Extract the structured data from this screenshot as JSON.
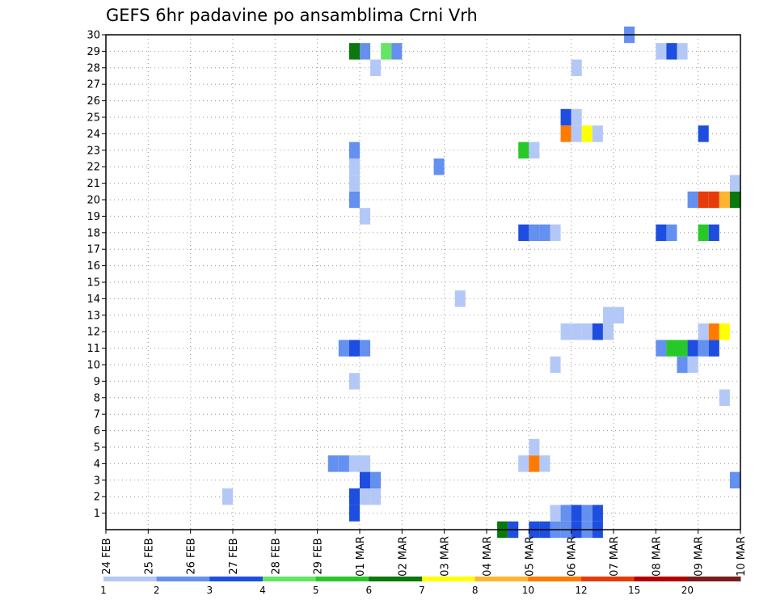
{
  "chart_data": {
    "type": "heatmap",
    "title": "GEFS 6hr padavine po ansamblima Crni Vrh",
    "xlabel": "",
    "ylabel": "",
    "x_tick_labels": [
      "24 FEB",
      "25 FEB",
      "26 FEB",
      "27 FEB",
      "28 FEB",
      "29 FEB",
      "01 MAR",
      "02 MAR",
      "03 MAR",
      "04 MAR",
      "05 MAR",
      "06 MAR",
      "07 MAR",
      "08 MAR",
      "09 MAR",
      "10 MAR"
    ],
    "x_range_days": [
      0,
      15
    ],
    "y_tick_labels": [
      "1",
      "2",
      "3",
      "4",
      "5",
      "6",
      "7",
      "8",
      "9",
      "10",
      "11",
      "12",
      "13",
      "14",
      "15",
      "16",
      "17",
      "18",
      "19",
      "20",
      "21",
      "22",
      "23",
      "24",
      "25",
      "26",
      "27",
      "28",
      "29",
      "30"
    ],
    "y_range": [
      0,
      30
    ],
    "grid": true,
    "colorbar": {
      "labels": [
        "1",
        "2",
        "3",
        "4",
        "5",
        "6",
        "7",
        "8",
        "10",
        "12",
        "15",
        "20"
      ],
      "bounds": [
        1,
        2,
        3,
        4,
        5,
        6,
        7,
        8,
        10,
        12,
        15,
        20
      ],
      "colors": [
        "#b4c8f8",
        "#6490f0",
        "#1e4ee0",
        "#64e664",
        "#28c828",
        "#0a780a",
        "#ffff00",
        "#ffb432",
        "#ff7a00",
        "#e63c0a",
        "#b40000",
        "#781e1e"
      ]
    },
    "cells_note": "each cell: day offset from 24 FEB (6h step = 0.25), member row, precipitation class (1-based)",
    "cells": [
      [
        0,
        2.75,
        2,
        1
      ],
      [
        0,
        5.25,
        4,
        2
      ],
      [
        0,
        5.5,
        4,
        2
      ],
      [
        0,
        5.75,
        4,
        1
      ],
      [
        0,
        5.75,
        1,
        3
      ],
      [
        0,
        5.75,
        2,
        3
      ],
      [
        0,
        6.0,
        3,
        3
      ],
      [
        0,
        6.25,
        3,
        2
      ],
      [
        0,
        6.0,
        2,
        1
      ],
      [
        0,
        6.25,
        2,
        1
      ],
      [
        0,
        6.0,
        4,
        1
      ],
      [
        0,
        5.75,
        9,
        1
      ],
      [
        0,
        5.5,
        11,
        2
      ],
      [
        0,
        5.75,
        11,
        3
      ],
      [
        0,
        6.0,
        11,
        2
      ],
      [
        0,
        5.75,
        20,
        2
      ],
      [
        0,
        6.0,
        19,
        1
      ],
      [
        0,
        5.75,
        21,
        1
      ],
      [
        0,
        5.75,
        22,
        1
      ],
      [
        0,
        5.75,
        23,
        2
      ],
      [
        0,
        6.25,
        28,
        1
      ],
      [
        0,
        5.75,
        29,
        6
      ],
      [
        0,
        6.0,
        29,
        2
      ],
      [
        0,
        6.5,
        29,
        4
      ],
      [
        0,
        6.75,
        29,
        2
      ],
      [
        0,
        7.75,
        22,
        2
      ],
      [
        0,
        8.25,
        14,
        1
      ],
      [
        0,
        9.25,
        0,
        6
      ],
      [
        0,
        9.5,
        0,
        3
      ],
      [
        0,
        10.0,
        0,
        3
      ],
      [
        0,
        10.25,
        0,
        3
      ],
      [
        0,
        10.5,
        0,
        2
      ],
      [
        0,
        10.75,
        0,
        2
      ],
      [
        0,
        11.0,
        0,
        3
      ],
      [
        0,
        11.25,
        0,
        2
      ],
      [
        0,
        11.5,
        0,
        3
      ],
      [
        0,
        10.5,
        1,
        1
      ],
      [
        0,
        10.75,
        1,
        2
      ],
      [
        0,
        11.0,
        1,
        3
      ],
      [
        0,
        11.25,
        1,
        2
      ],
      [
        0,
        11.5,
        1,
        3
      ],
      [
        0,
        9.75,
        4,
        1
      ],
      [
        0,
        10.0,
        4,
        9
      ],
      [
        0,
        10.25,
        4,
        1
      ],
      [
        0,
        10.0,
        5,
        1
      ],
      [
        0,
        9.75,
        18,
        3
      ],
      [
        0,
        10.0,
        18,
        2
      ],
      [
        0,
        10.25,
        18,
        2
      ],
      [
        0,
        10.5,
        18,
        1
      ],
      [
        0,
        9.75,
        23,
        5
      ],
      [
        0,
        10.0,
        23,
        1
      ],
      [
        0,
        10.5,
        10,
        1
      ],
      [
        0,
        10.75,
        12,
        1
      ],
      [
        0,
        11.0,
        12,
        1
      ],
      [
        0,
        11.25,
        12,
        1
      ],
      [
        0,
        11.5,
        12,
        3
      ],
      [
        0,
        11.75,
        12,
        1
      ],
      [
        0,
        11.75,
        13,
        1
      ],
      [
        0,
        12.0,
        13,
        1
      ],
      [
        0,
        10.75,
        24,
        9
      ],
      [
        0,
        11.0,
        24,
        1
      ],
      [
        0,
        11.25,
        24,
        7
      ],
      [
        0,
        11.5,
        24,
        1
      ],
      [
        0,
        10.75,
        25,
        3
      ],
      [
        0,
        11.0,
        25,
        1
      ],
      [
        0,
        11.0,
        28,
        1
      ],
      [
        0,
        12.25,
        30,
        2
      ],
      [
        0,
        13.0,
        29,
        1
      ],
      [
        0,
        13.25,
        29,
        3
      ],
      [
        0,
        13.5,
        29,
        1
      ],
      [
        0,
        13.0,
        18,
        3
      ],
      [
        0,
        13.25,
        18,
        2
      ],
      [
        0,
        14.0,
        18,
        5
      ],
      [
        0,
        14.25,
        18,
        3
      ],
      [
        0,
        13.0,
        11,
        2
      ],
      [
        0,
        13.25,
        11,
        5
      ],
      [
        0,
        13.5,
        11,
        5
      ],
      [
        0,
        13.75,
        11,
        3
      ],
      [
        0,
        14.0,
        11,
        2
      ],
      [
        0,
        14.25,
        11,
        3
      ],
      [
        0,
        13.5,
        10,
        2
      ],
      [
        0,
        13.75,
        10,
        1
      ],
      [
        0,
        14.0,
        12,
        1
      ],
      [
        0,
        14.25,
        12,
        9
      ],
      [
        0,
        14.5,
        12,
        7
      ],
      [
        0,
        14.0,
        24,
        3
      ],
      [
        0,
        13.75,
        20,
        2
      ],
      [
        0,
        14.0,
        20,
        10
      ],
      [
        0,
        14.25,
        20,
        10
      ],
      [
        0,
        14.5,
        20,
        8
      ],
      [
        0,
        14.75,
        20,
        6
      ],
      [
        0,
        14.75,
        21,
        1
      ],
      [
        0,
        14.5,
        8,
        1
      ],
      [
        0,
        14.75,
        3,
        2
      ]
    ]
  }
}
